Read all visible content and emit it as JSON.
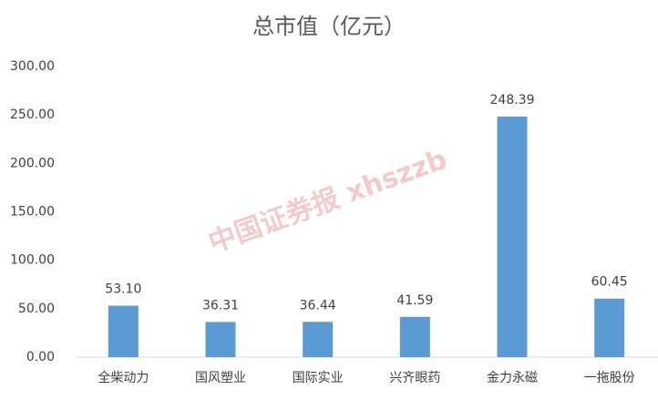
{
  "chart_data": {
    "type": "bar",
    "title": "总市值（亿元）",
    "categories": [
      "全柴动力",
      "国风塑业",
      "国际实业",
      "兴齐眼药",
      "金力永磁",
      "一拖股份"
    ],
    "values": [
      53.1,
      36.31,
      36.44,
      41.59,
      248.39,
      60.45
    ],
    "value_labels": [
      "53.10",
      "36.31",
      "36.44",
      "41.59",
      "248.39",
      "60.45"
    ],
    "color": "#5b9bd5",
    "ylim": [
      0,
      300
    ],
    "yticks": [
      {
        "value": 0,
        "label": "0.00"
      },
      {
        "value": 50,
        "label": "50.00"
      },
      {
        "value": 100,
        "label": "100.00"
      },
      {
        "value": 150,
        "label": "150.00"
      },
      {
        "value": 200,
        "label": "200.00"
      },
      {
        "value": 250,
        "label": "250.00"
      },
      {
        "value": 300,
        "label": "300.00"
      }
    ],
    "grid": false,
    "watermark": "中国证券报 xhszzb"
  }
}
